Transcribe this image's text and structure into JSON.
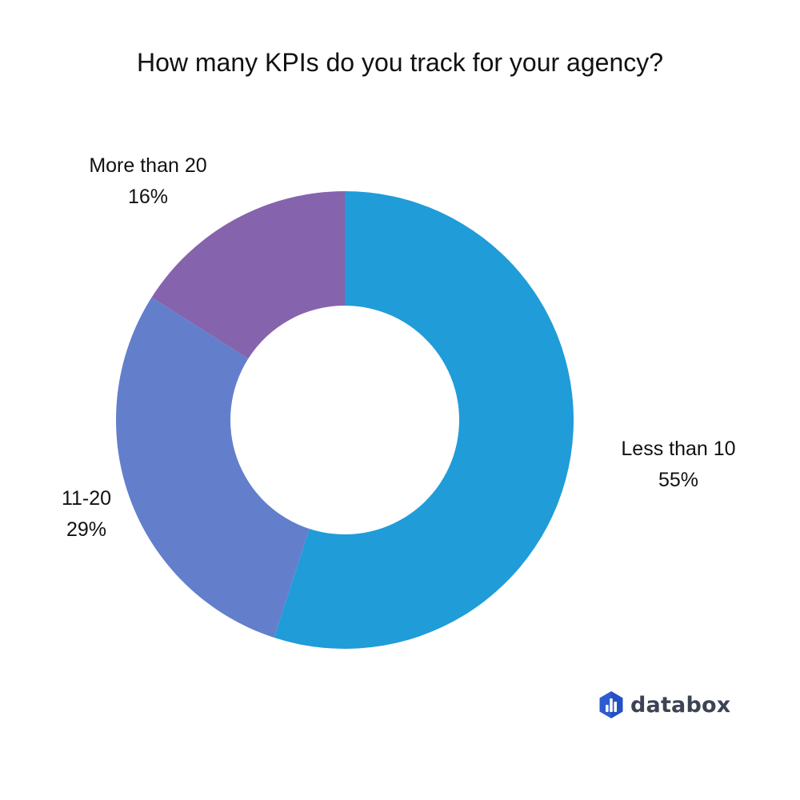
{
  "chart_data": {
    "type": "pie",
    "variant": "donut",
    "title": "How many KPIs do you track for your agency?",
    "slices": [
      {
        "label": "Less than 10",
        "value": 55,
        "value_label": "55%",
        "color": "#209cd8"
      },
      {
        "label": "11-20",
        "value": 29,
        "value_label": "29%",
        "color": "#637fcc"
      },
      {
        "label": "More than 20",
        "value": 16,
        "value_label": "16%",
        "color": "#8564ad"
      }
    ],
    "start": "top, clockwise",
    "legend": "none (direct labels)"
  },
  "brand": {
    "name": "databox",
    "logo_icon": "databox-hexagon-bars-icon",
    "logo_color": "#2e5bd1"
  }
}
